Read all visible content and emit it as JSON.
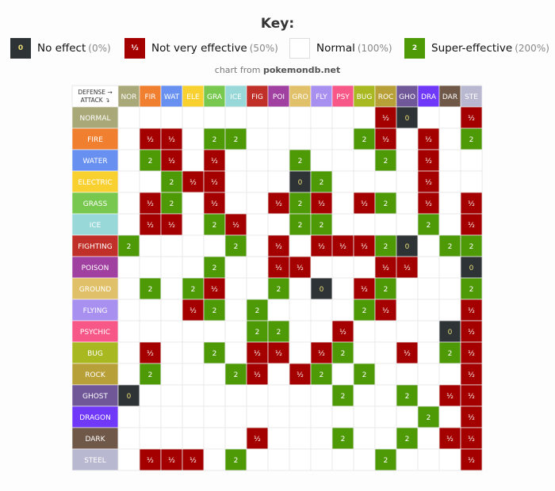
{
  "chart_data": {
    "type": "heatmap",
    "title": "Key:",
    "credit_prefix": "chart from",
    "credit_site": "pokemondb.net",
    "corner_defense": "DEFENSE →",
    "corner_attack": "ATTACK ↴",
    "legend": [
      {
        "code": "0",
        "label": "No effect",
        "pct": "(0%)",
        "color": "#2e3436",
        "text_color": "#eadd77"
      },
      {
        "code": "½",
        "label": "Not very effective",
        "pct": "(50%)",
        "color": "#a40000",
        "text_color": "#ffffff"
      },
      {
        "code": "",
        "label": "Normal",
        "pct": "(100%)",
        "color": "#ffffff",
        "text_color": "#222222"
      },
      {
        "code": "2",
        "label": "Super-effective",
        "pct": "(200%)",
        "color": "#4e9a06",
        "text_color": "#ffffff"
      }
    ],
    "defense_types": [
      "NOR",
      "FIR",
      "WAT",
      "ELE",
      "GRA",
      "ICE",
      "FIG",
      "POI",
      "GRO",
      "FLY",
      "PSY",
      "BUG",
      "ROC",
      "GHO",
      "DRA",
      "DAR",
      "STE"
    ],
    "attack_types": [
      "NORMAL",
      "FIRE",
      "WATER",
      "ELECTRIC",
      "GRASS",
      "ICE",
      "FIGHTING",
      "POISON",
      "GROUND",
      "FLYING",
      "PSYCHIC",
      "BUG",
      "ROCK",
      "GHOST",
      "DRAGON",
      "DARK",
      "STEEL"
    ],
    "type_colors": [
      "#a8a878",
      "#f08030",
      "#6890f0",
      "#f8d030",
      "#78c850",
      "#98d8d8",
      "#c03028",
      "#a040a0",
      "#e0c068",
      "#a890f0",
      "#f85888",
      "#a8b820",
      "#b8a038",
      "#705898",
      "#7038f8",
      "#705848",
      "#b8b8d0"
    ],
    "matrix": [
      [
        "",
        "",
        "",
        "",
        "",
        "",
        "",
        "",
        "",
        "",
        "",
        "",
        "½",
        "0",
        "",
        "",
        "½"
      ],
      [
        "",
        "½",
        "½",
        "",
        "2",
        "2",
        "",
        "",
        "",
        "",
        "",
        "2",
        "½",
        "",
        "½",
        "",
        "2"
      ],
      [
        "",
        "2",
        "½",
        "",
        "½",
        "",
        "",
        "",
        "2",
        "",
        "",
        "",
        "2",
        "",
        "½",
        "",
        ""
      ],
      [
        "",
        "",
        "2",
        "½",
        "½",
        "",
        "",
        "",
        "0",
        "2",
        "",
        "",
        "",
        "",
        "½",
        "",
        ""
      ],
      [
        "",
        "½",
        "2",
        "",
        "½",
        "",
        "",
        "½",
        "2",
        "½",
        "",
        "½",
        "2",
        "",
        "½",
        "",
        "½"
      ],
      [
        "",
        "½",
        "½",
        "",
        "2",
        "½",
        "",
        "",
        "2",
        "2",
        "",
        "",
        "",
        "",
        "2",
        "",
        "½"
      ],
      [
        "2",
        "",
        "",
        "",
        "",
        "2",
        "",
        "½",
        "",
        "½",
        "½",
        "½",
        "2",
        "0",
        "",
        "2",
        "2"
      ],
      [
        "",
        "",
        "",
        "",
        "2",
        "",
        "",
        "½",
        "½",
        "",
        "",
        "",
        "½",
        "½",
        "",
        "",
        "0"
      ],
      [
        "",
        "2",
        "",
        "2",
        "½",
        "",
        "",
        "2",
        "",
        "0",
        "",
        "½",
        "2",
        "",
        "",
        "",
        "2"
      ],
      [
        "",
        "",
        "",
        "½",
        "2",
        "",
        "2",
        "",
        "",
        "",
        "",
        "2",
        "½",
        "",
        "",
        "",
        "½"
      ],
      [
        "",
        "",
        "",
        "",
        "",
        "",
        "2",
        "2",
        "",
        "",
        "½",
        "",
        "",
        "",
        "",
        "0",
        "½"
      ],
      [
        "",
        "½",
        "",
        "",
        "2",
        "",
        "½",
        "½",
        "",
        "½",
        "2",
        "",
        "",
        "½",
        "",
        "2",
        "½"
      ],
      [
        "",
        "2",
        "",
        "",
        "",
        "2",
        "½",
        "",
        "½",
        "2",
        "",
        "2",
        "",
        "",
        "",
        "",
        "½"
      ],
      [
        "0",
        "",
        "",
        "",
        "",
        "",
        "",
        "",
        "",
        "",
        "2",
        "",
        "",
        "2",
        "",
        "½",
        "½"
      ],
      [
        "",
        "",
        "",
        "",
        "",
        "",
        "",
        "",
        "",
        "",
        "",
        "",
        "",
        "",
        "2",
        "",
        "½"
      ],
      [
        "",
        "",
        "",
        "",
        "",
        "",
        "½",
        "",
        "",
        "",
        "2",
        "",
        "",
        "2",
        "",
        "½",
        "½"
      ],
      [
        "",
        "½",
        "½",
        "½",
        "",
        "2",
        "",
        "",
        "",
        "",
        "",
        "",
        "2",
        "",
        "",
        "",
        "½"
      ]
    ]
  }
}
